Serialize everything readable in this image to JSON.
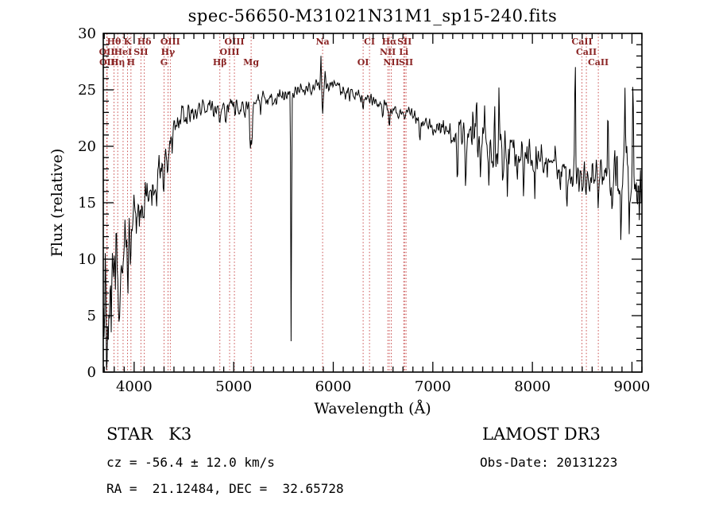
{
  "title": "spec-56650-M31021N31M1_sp15-240.fits",
  "footer": {
    "class_label": "STAR   K3",
    "survey": "LAMOST DR3",
    "cz": "cz = -56.4 ± 12.0 km/s",
    "obs_date": "Obs-Date: 20131223",
    "radec": "RA =  21.12484, DEC =  32.65728"
  },
  "chart_data": {
    "type": "line",
    "title": "spec-56650-M31021N31M1_sp15-240.fits",
    "xlabel": "Wavelength (Å)",
    "ylabel": "Flux (relative)",
    "xlim": [
      3690,
      9100
    ],
    "ylim": [
      0,
      30
    ],
    "x_ticks": [
      4000,
      5000,
      6000,
      7000,
      8000,
      9000
    ],
    "y_ticks": [
      0,
      5,
      10,
      15,
      20,
      25,
      30
    ],
    "grid": false,
    "legend": "none",
    "line_color": "#000000",
    "marker_line_color": "#bb2222",
    "marker_label_color": "#8a2424",
    "line_markers": [
      {
        "label": "OII",
        "wavelength": 3726,
        "row": 2
      },
      {
        "label": "OII",
        "wavelength": 3729,
        "row": 3
      },
      {
        "label": "Hθ",
        "wavelength": 3798,
        "row": 1
      },
      {
        "label": "Hη",
        "wavelength": 3835,
        "row": 3
      },
      {
        "label": "HeI",
        "wavelength": 3889,
        "row": 2
      },
      {
        "label": "K",
        "wavelength": 3934,
        "row": 1
      },
      {
        "label": "H",
        "wavelength": 3968,
        "row": 3
      },
      {
        "label": "SII",
        "wavelength": 4068,
        "row": 2
      },
      {
        "label": "Hδ",
        "wavelength": 4102,
        "row": 1
      },
      {
        "label": "G",
        "wavelength": 4300,
        "row": 3
      },
      {
        "label": "Hγ",
        "wavelength": 4340,
        "row": 2
      },
      {
        "label": "OIII",
        "wavelength": 4363,
        "row": 1
      },
      {
        "label": "Hβ",
        "wavelength": 4861,
        "row": 3
      },
      {
        "label": "OIII",
        "wavelength": 4959,
        "row": 2
      },
      {
        "label": "OIII",
        "wavelength": 5007,
        "row": 1
      },
      {
        "label": "Mg",
        "wavelength": 5175,
        "row": 3
      },
      {
        "label": "Na",
        "wavelength": 5893,
        "row": 1
      },
      {
        "label": "OI",
        "wavelength": 6300,
        "row": 3
      },
      {
        "label": "CI",
        "wavelength": 6364,
        "row": 1
      },
      {
        "label": "NII",
        "wavelength": 6548,
        "row": 2
      },
      {
        "label": "Hα",
        "wavelength": 6563,
        "row": 1
      },
      {
        "label": "NII",
        "wavelength": 6583,
        "row": 3
      },
      {
        "label": "Li",
        "wavelength": 6708,
        "row": 2
      },
      {
        "label": "SII",
        "wavelength": 6716,
        "row": 1
      },
      {
        "label": "SII",
        "wavelength": 6731,
        "row": 3
      },
      {
        "label": "CaII",
        "wavelength": 8498,
        "row": 1
      },
      {
        "label": "CaII",
        "wavelength": 8542,
        "row": 2
      },
      {
        "label": "CaII",
        "wavelength": 8662,
        "row": 3
      }
    ],
    "continuum": [
      [
        3690,
        7
      ],
      [
        3750,
        8
      ],
      [
        3800,
        9
      ],
      [
        3850,
        10.5
      ],
      [
        3900,
        12
      ],
      [
        3950,
        13.5
      ],
      [
        4000,
        15
      ],
      [
        4100,
        15.8
      ],
      [
        4200,
        16.2
      ],
      [
        4300,
        19
      ],
      [
        4400,
        22
      ],
      [
        4500,
        23.2
      ],
      [
        4600,
        23.2
      ],
      [
        4700,
        23.6
      ],
      [
        4800,
        23.4
      ],
      [
        4900,
        23.4
      ],
      [
        5000,
        23.7
      ],
      [
        5100,
        23.6
      ],
      [
        5200,
        23.9
      ],
      [
        5300,
        24.2
      ],
      [
        5400,
        24.4
      ],
      [
        5500,
        24.6
      ],
      [
        5600,
        24.9
      ],
      [
        5700,
        25.1
      ],
      [
        5800,
        25.3
      ],
      [
        5900,
        25.6
      ],
      [
        6000,
        25.4
      ],
      [
        6100,
        25.0
      ],
      [
        6200,
        24.7
      ],
      [
        6300,
        24.4
      ],
      [
        6400,
        24.0
      ],
      [
        6500,
        23.6
      ],
      [
        6600,
        23.2
      ],
      [
        6700,
        22.9
      ],
      [
        6800,
        22.7
      ],
      [
        6900,
        22.3
      ],
      [
        7000,
        22.0
      ],
      [
        7100,
        21.7
      ],
      [
        7200,
        21.3
      ],
      [
        7300,
        20.9
      ],
      [
        7400,
        20.6
      ],
      [
        7500,
        20.3
      ],
      [
        7600,
        19.9
      ],
      [
        7700,
        19.7
      ],
      [
        7800,
        19.5
      ],
      [
        7900,
        19.2
      ],
      [
        8000,
        18.9
      ],
      [
        8100,
        18.6
      ],
      [
        8200,
        18.2
      ],
      [
        8300,
        17.9
      ],
      [
        8400,
        17.6
      ],
      [
        8500,
        17.4
      ],
      [
        8600,
        17.3
      ],
      [
        8700,
        17.3
      ],
      [
        8800,
        17.4
      ],
      [
        8900,
        17.2
      ],
      [
        9000,
        17.3
      ],
      [
        9100,
        16.8
      ]
    ],
    "noise_profile": [
      [
        3690,
        4.0
      ],
      [
        3800,
        3.2
      ],
      [
        3900,
        2.6
      ],
      [
        4000,
        1.8
      ],
      [
        4150,
        1.3
      ],
      [
        4300,
        1.1
      ],
      [
        4450,
        0.8
      ],
      [
        4700,
        0.6
      ],
      [
        5000,
        0.55
      ],
      [
        5400,
        0.5
      ],
      [
        5800,
        0.45
      ],
      [
        6200,
        0.4
      ],
      [
        6600,
        0.42
      ],
      [
        7000,
        0.5
      ],
      [
        7250,
        0.9
      ],
      [
        7500,
        1.3
      ],
      [
        7800,
        1.1
      ],
      [
        8100,
        0.8
      ],
      [
        8400,
        0.9
      ],
      [
        8650,
        1.1
      ],
      [
        8900,
        1.9
      ],
      [
        9100,
        2.6
      ]
    ],
    "features": [
      [
        3727,
        -3,
        5
      ],
      [
        3740,
        -6,
        8
      ],
      [
        3770,
        -4,
        5
      ],
      [
        3798,
        -3,
        5
      ],
      [
        3820,
        2,
        4
      ],
      [
        3850,
        -4,
        6
      ],
      [
        3889,
        -3,
        5
      ],
      [
        3910,
        2,
        4
      ],
      [
        3934,
        -4,
        6
      ],
      [
        3968,
        -3,
        6
      ],
      [
        4020,
        -2,
        5
      ],
      [
        4068,
        -2,
        5
      ],
      [
        4102,
        -2.5,
        6
      ],
      [
        4144,
        -1.5,
        5
      ],
      [
        4226,
        -2,
        6
      ],
      [
        4300,
        -2,
        8
      ],
      [
        4340,
        -2,
        6
      ],
      [
        4383,
        -1.5,
        5
      ],
      [
        4455,
        -1,
        5
      ],
      [
        4531,
        -1,
        5
      ],
      [
        4668,
        -1,
        5
      ],
      [
        4861,
        -1.8,
        7
      ],
      [
        4920,
        -1,
        5
      ],
      [
        5015,
        -0.8,
        4
      ],
      [
        5110,
        -1,
        6
      ],
      [
        5167,
        -4,
        7
      ],
      [
        5183,
        -3.5,
        6
      ],
      [
        5270,
        -1.2,
        6
      ],
      [
        5328,
        -1,
        5
      ],
      [
        5430,
        -0.8,
        5
      ],
      [
        5577,
        -23,
        4
      ],
      [
        5710,
        -0.8,
        5
      ],
      [
        5782,
        -0.6,
        4
      ],
      [
        5875,
        2.2,
        4
      ],
      [
        5893,
        -2.8,
        6
      ],
      [
        5920,
        0.8,
        4
      ],
      [
        6122,
        -0.8,
        5
      ],
      [
        6162,
        -0.8,
        5
      ],
      [
        6300,
        -1,
        4
      ],
      [
        6364,
        -0.6,
        4
      ],
      [
        6495,
        -0.8,
        5
      ],
      [
        6563,
        -1.8,
        6
      ],
      [
        6623,
        0.5,
        4
      ],
      [
        6717,
        -0.6,
        4
      ],
      [
        6870,
        -1.6,
        9
      ],
      [
        7000,
        -0.6,
        5
      ],
      [
        7186,
        -1.2,
        8
      ],
      [
        7246,
        -3.2,
        5
      ],
      [
        7280,
        1.2,
        4
      ],
      [
        7330,
        -3.8,
        5
      ],
      [
        7400,
        2.0,
        4
      ],
      [
        7440,
        3.5,
        4
      ],
      [
        7480,
        -2.0,
        4
      ],
      [
        7520,
        2.5,
        4
      ],
      [
        7563,
        -3.0,
        4
      ],
      [
        7593,
        -2.8,
        8
      ],
      [
        7620,
        4.5,
        4
      ],
      [
        7665,
        5.5,
        4
      ],
      [
        7700,
        -2.5,
        4
      ],
      [
        7750,
        -3.5,
        4
      ],
      [
        7800,
        1.8,
        4
      ],
      [
        7850,
        -1.5,
        4
      ],
      [
        7912,
        -3.0,
        4
      ],
      [
        7970,
        1.5,
        4
      ],
      [
        8025,
        -3.2,
        4
      ],
      [
        8090,
        1.5,
        4
      ],
      [
        8150,
        -1.5,
        4
      ],
      [
        8230,
        2.0,
        4
      ],
      [
        8280,
        -2.2,
        4
      ],
      [
        8344,
        -2.5,
        5
      ],
      [
        8430,
        11,
        4
      ],
      [
        8470,
        -1.5,
        4
      ],
      [
        8498,
        -2.0,
        5
      ],
      [
        8542,
        -2.2,
        5
      ],
      [
        8600,
        1.0,
        4
      ],
      [
        8662,
        -2.0,
        5
      ],
      [
        8710,
        2.0,
        4
      ],
      [
        8760,
        5.0,
        4
      ],
      [
        8800,
        -3.5,
        4
      ],
      [
        8850,
        4.0,
        4
      ],
      [
        8890,
        -4.5,
        4
      ],
      [
        8930,
        5.5,
        4
      ],
      [
        8970,
        -3.0,
        4
      ],
      [
        9010,
        7.0,
        5
      ],
      [
        9050,
        -5.0,
        4
      ],
      [
        9085,
        4.0,
        4
      ]
    ],
    "noise_seed": 12,
    "sample_step": 6
  }
}
